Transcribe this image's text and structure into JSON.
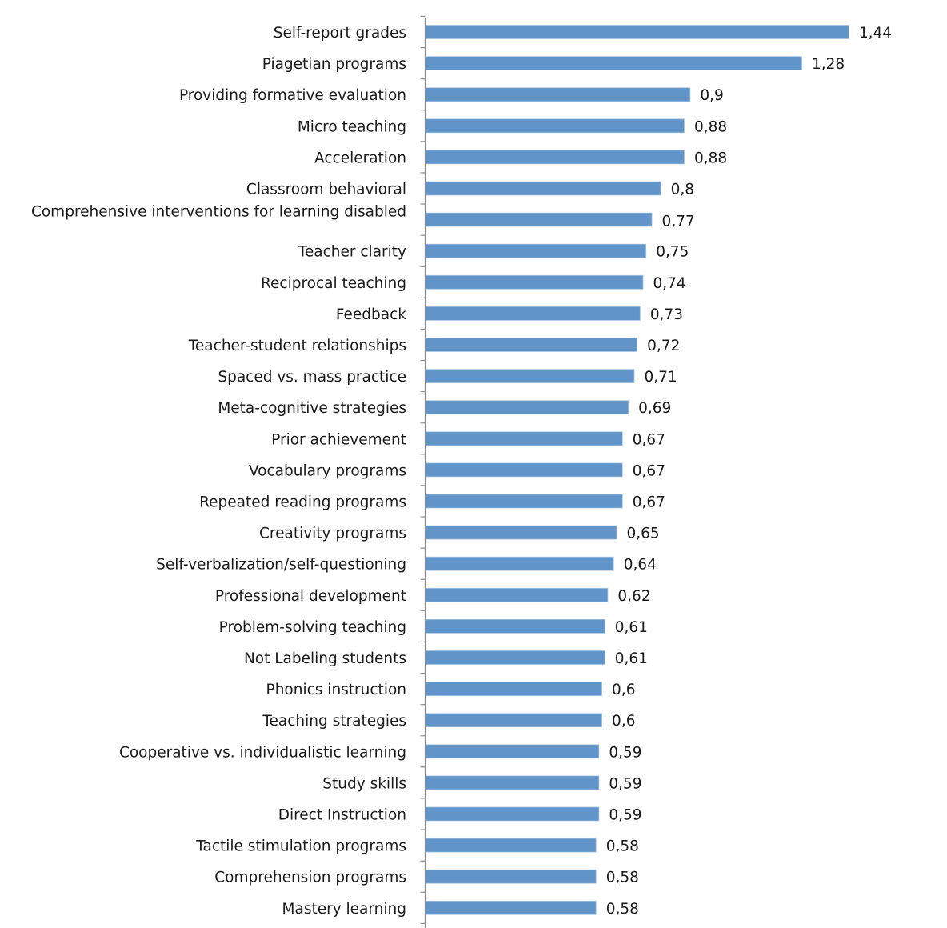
{
  "chart_data": {
    "type": "bar",
    "orientation": "horizontal",
    "title": "",
    "xlabel": "",
    "ylabel": "",
    "xlim": [
      0,
      1.44
    ],
    "grid": false,
    "legend": "none",
    "bar_color": "#6195C9",
    "decimal_separator": ",",
    "categories": [
      "Self-report grades",
      "Piagetian programs",
      "Providing formative evaluation",
      "Micro teaching",
      "Acceleration",
      "Classroom behavioral",
      "Comprehensive interventions for learning disabled",
      "Teacher clarity",
      "Reciprocal teaching",
      "Feedback",
      "Teacher-student relationships",
      "Spaced vs. mass practice",
      "Meta-cognitive strategies",
      "Prior achievement",
      "Vocabulary programs",
      "Repeated reading programs",
      "Creativity programs",
      "Self-verbalization/self-questioning",
      "Professional development",
      "Problem-solving teaching",
      "Not Labeling students",
      "Phonics instruction",
      "Teaching strategies",
      "Cooperative vs. individualistic learning",
      "Study skills",
      "Direct Instruction",
      "Tactile stimulation programs",
      "Comprehension programs",
      "Mastery learning"
    ],
    "values": [
      1.44,
      1.28,
      0.9,
      0.88,
      0.88,
      0.8,
      0.77,
      0.75,
      0.74,
      0.73,
      0.72,
      0.71,
      0.69,
      0.67,
      0.67,
      0.67,
      0.65,
      0.64,
      0.62,
      0.61,
      0.61,
      0.6,
      0.6,
      0.59,
      0.59,
      0.59,
      0.58,
      0.58,
      0.58
    ],
    "value_labels": [
      "1,44",
      "1,28",
      "0,9",
      "0,88",
      "0,88",
      "0,8",
      "0,77",
      "0,75",
      "0,74",
      "0,73",
      "0,72",
      "0,71",
      "0,69",
      "0,67",
      "0,67",
      "0,67",
      "0,65",
      "0,64",
      "0,62",
      "0,61",
      "0,61",
      "0,6",
      "0,6",
      "0,59",
      "0,59",
      "0,59",
      "0,58",
      "0,58",
      "0,58"
    ]
  }
}
